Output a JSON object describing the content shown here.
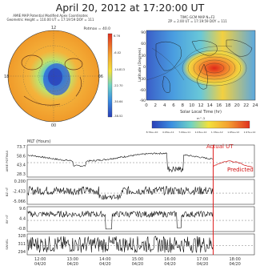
{
  "title": "April  20,  2012  at  17:20:00  UT",
  "polar_panel": {
    "header_line1": "AMIE MAP Potential Modified Apex Coordinates",
    "header_line2": "Geometric Height = 110.00 UT = 17:19:59 DOY = 111",
    "potmax": "Potmax = 40.0",
    "clock_labels": [
      "12",
      "18",
      "06",
      "00"
    ],
    "colorbar_ticks": [
      "6.76",
      "-6.02",
      "-14.813",
      "-22.70",
      "-30.64",
      "-38.52"
    ]
  },
  "map_panel": {
    "header_line1": "TIMC-GCM MAP N=F2",
    "header_line2": "ZP = 2.00 UT = 17:19:59 DOY = 111",
    "ylabel": "Latitude (Degrees)",
    "xlabel": "Solar Local Time (hr)",
    "yticks": [
      "90",
      "60",
      "30",
      "0",
      "-30",
      "-60",
      "-90"
    ],
    "xticks": [
      "0",
      "2",
      "4",
      "6",
      "8",
      "10",
      "12",
      "14",
      "16",
      "18",
      "20",
      "22",
      "24"
    ],
    "colorbar_unit": "m^-3",
    "colorbar_ticks": [
      "8.76e+10",
      "4.03e+11",
      "7.09e+11",
      "1.03e+12",
      "1.33e+12",
      "1.65e+12",
      "1.97e+12"
    ]
  },
  "chart_data": {
    "type": "line",
    "xlabel": "MLT (Hours)",
    "x_ticks": [
      "12:00\n04/20",
      "13:00\n04/20",
      "14:00\n04/20",
      "15:00\n04/20",
      "16:00\n04/20",
      "17:00\n04/20",
      "18:00\n04/20"
    ],
    "annotations": {
      "actual": "Actual UT",
      "predicted": "Predicted"
    },
    "actual_ut_hour": 17.33,
    "panels": [
      {
        "name": "AMIE POTMAX",
        "yticks": [
          "73.7",
          "58.6",
          "43.4",
          "28.3"
        ],
        "ylim": [
          28.3,
          73.7
        ]
      },
      {
        "name": "BZ nT",
        "yticks": [
          "0.200",
          "-2.433",
          "-5.066"
        ],
        "ylim": [
          -5.066,
          0.2
        ]
      },
      {
        "name": "BY nT",
        "yticks": [
          "9.6",
          "4.4",
          "-0.8"
        ],
        "ylim": [
          -0.8,
          9.6
        ]
      },
      {
        "name": "SWVEL",
        "yticks": [
          "328",
          "311",
          "294"
        ],
        "ylim": [
          294,
          328
        ]
      }
    ],
    "colors": {
      "data": "#000000",
      "predicted": "#d01010",
      "actual_line": "#e02020"
    }
  }
}
